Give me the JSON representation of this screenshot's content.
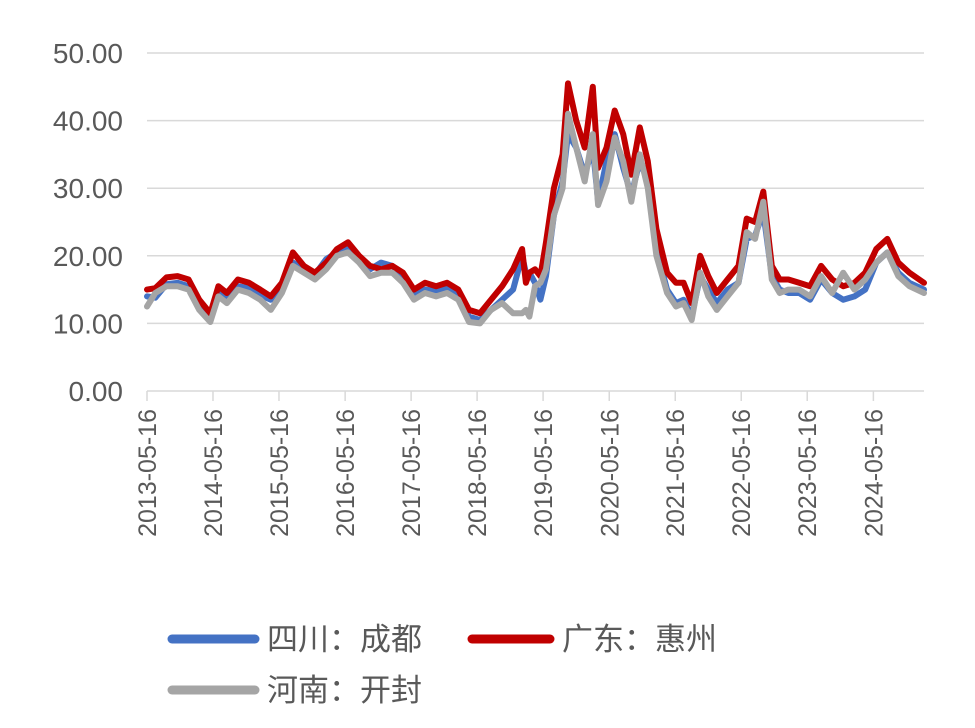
{
  "chart_data": {
    "type": "line",
    "title": "",
    "xlabel": "",
    "ylabel": "",
    "ylim": [
      0,
      50
    ],
    "yticks": [
      "0.00",
      "10.00",
      "20.00",
      "30.00",
      "40.00",
      "50.00"
    ],
    "xlim": [
      "2013-05-16",
      "2025-02-20"
    ],
    "xticks": [
      "2013-05-16",
      "2014-05-16",
      "2015-05-16",
      "2016-05-16",
      "2017-05-16",
      "2018-05-16",
      "2019-05-16",
      "2020-05-16",
      "2021-05-16",
      "2022-05-16",
      "2023-05-16",
      "2024-05-16"
    ],
    "grid": "horizontal",
    "legend_position": "bottom",
    "series": [
      {
        "name": "四川：成都",
        "color": "#4472C4",
        "points": [
          [
            "2013-05-16",
            14.0
          ],
          [
            "2013-07-01",
            13.8
          ],
          [
            "2013-09-01",
            15.8
          ],
          [
            "2013-11-01",
            16.0
          ],
          [
            "2014-01-01",
            15.5
          ],
          [
            "2014-03-01",
            12.5
          ],
          [
            "2014-05-01",
            10.8
          ],
          [
            "2014-06-15",
            14.5
          ],
          [
            "2014-08-01",
            13.5
          ],
          [
            "2014-10-01",
            15.5
          ],
          [
            "2014-12-01",
            15.2
          ],
          [
            "2015-02-01",
            14.2
          ],
          [
            "2015-04-01",
            13.5
          ],
          [
            "2015-06-01",
            15.2
          ],
          [
            "2015-08-01",
            19.0
          ],
          [
            "2015-10-01",
            18.0
          ],
          [
            "2015-12-01",
            17.2
          ],
          [
            "2016-02-01",
            19.5
          ],
          [
            "2016-04-01",
            20.5
          ],
          [
            "2016-06-01",
            21.5
          ],
          [
            "2016-08-01",
            19.5
          ],
          [
            "2016-10-01",
            18.0
          ],
          [
            "2016-12-01",
            19.0
          ],
          [
            "2017-02-01",
            18.5
          ],
          [
            "2017-04-01",
            17.0
          ],
          [
            "2017-06-01",
            14.2
          ],
          [
            "2017-08-01",
            15.0
          ],
          [
            "2017-10-01",
            14.8
          ],
          [
            "2017-12-01",
            15.2
          ],
          [
            "2018-02-01",
            14.0
          ],
          [
            "2018-04-01",
            11.0
          ],
          [
            "2018-06-01",
            10.5
          ],
          [
            "2018-08-01",
            12.0
          ],
          [
            "2018-10-01",
            13.5
          ],
          [
            "2018-12-01",
            15.0
          ],
          [
            "2019-01-20",
            20.0
          ],
          [
            "2019-02-10",
            17.5
          ],
          [
            "2019-03-01",
            17.5
          ],
          [
            "2019-04-01",
            16.0
          ],
          [
            "2019-05-01",
            13.5
          ],
          [
            "2019-06-01",
            17.0
          ],
          [
            "2019-07-15",
            26.0
          ],
          [
            "2019-09-01",
            31.0
          ],
          [
            "2019-10-01",
            38.0
          ],
          [
            "2019-11-15",
            36.0
          ],
          [
            "2020-01-01",
            32.0
          ],
          [
            "2020-02-15",
            36.0
          ],
          [
            "2020-03-15",
            28.0
          ],
          [
            "2020-05-01",
            34.0
          ],
          [
            "2020-06-15",
            38.0
          ],
          [
            "2020-08-01",
            33.0
          ],
          [
            "2020-09-15",
            29.0
          ],
          [
            "2020-11-01",
            34.0
          ],
          [
            "2020-12-15",
            31.0
          ],
          [
            "2021-02-01",
            21.0
          ],
          [
            "2021-04-01",
            15.0
          ],
          [
            "2021-05-20",
            13.0
          ],
          [
            "2021-07-01",
            13.5
          ],
          [
            "2021-08-15",
            11.0
          ],
          [
            "2021-10-01",
            17.0
          ],
          [
            "2021-11-15",
            15.0
          ],
          [
            "2022-01-01",
            13.0
          ],
          [
            "2022-03-01",
            15.0
          ],
          [
            "2022-05-01",
            16.0
          ],
          [
            "2022-06-15",
            22.5
          ],
          [
            "2022-08-01",
            23.0
          ],
          [
            "2022-09-15",
            26.5
          ],
          [
            "2022-11-01",
            17.0
          ],
          [
            "2022-12-15",
            15.0
          ],
          [
            "2023-02-01",
            14.5
          ],
          [
            "2023-04-01",
            14.5
          ],
          [
            "2023-06-01",
            13.5
          ],
          [
            "2023-08-01",
            16.5
          ],
          [
            "2023-10-01",
            14.5
          ],
          [
            "2023-12-01",
            13.5
          ],
          [
            "2024-02-01",
            14.0
          ],
          [
            "2024-04-01",
            15.0
          ],
          [
            "2024-06-01",
            19.0
          ],
          [
            "2024-08-01",
            20.5
          ],
          [
            "2024-10-01",
            17.5
          ],
          [
            "2024-12-01",
            16.0
          ],
          [
            "2025-02-20",
            15.0
          ]
        ]
      },
      {
        "name": "广东：惠州",
        "color": "#C00000",
        "points": [
          [
            "2013-05-16",
            15.0
          ],
          [
            "2013-07-01",
            15.2
          ],
          [
            "2013-09-01",
            16.8
          ],
          [
            "2013-11-01",
            17.0
          ],
          [
            "2014-01-01",
            16.5
          ],
          [
            "2014-03-01",
            13.5
          ],
          [
            "2014-05-01",
            11.5
          ],
          [
            "2014-06-15",
            15.5
          ],
          [
            "2014-08-01",
            14.5
          ],
          [
            "2014-10-01",
            16.5
          ],
          [
            "2014-12-01",
            16.0
          ],
          [
            "2015-02-01",
            15.0
          ],
          [
            "2015-04-01",
            14.0
          ],
          [
            "2015-06-01",
            16.0
          ],
          [
            "2015-08-01",
            20.5
          ],
          [
            "2015-10-01",
            18.5
          ],
          [
            "2015-12-01",
            17.5
          ],
          [
            "2016-02-01",
            19.0
          ],
          [
            "2016-04-01",
            21.0
          ],
          [
            "2016-06-01",
            22.0
          ],
          [
            "2016-08-01",
            20.0
          ],
          [
            "2016-10-01",
            18.5
          ],
          [
            "2016-12-01",
            18.0
          ],
          [
            "2017-02-01",
            18.5
          ],
          [
            "2017-04-01",
            17.5
          ],
          [
            "2017-06-01",
            15.0
          ],
          [
            "2017-08-01",
            16.0
          ],
          [
            "2017-10-01",
            15.5
          ],
          [
            "2017-12-01",
            16.0
          ],
          [
            "2018-02-01",
            15.0
          ],
          [
            "2018-04-01",
            12.0
          ],
          [
            "2018-06-01",
            11.5
          ],
          [
            "2018-08-01",
            13.5
          ],
          [
            "2018-10-01",
            15.5
          ],
          [
            "2018-12-01",
            18.0
          ],
          [
            "2019-01-20",
            21.0
          ],
          [
            "2019-02-10",
            16.0
          ],
          [
            "2019-03-01",
            17.5
          ],
          [
            "2019-04-01",
            18.0
          ],
          [
            "2019-05-01",
            17.0
          ],
          [
            "2019-06-01",
            22.0
          ],
          [
            "2019-07-15",
            30.0
          ],
          [
            "2019-09-01",
            35.0
          ],
          [
            "2019-10-01",
            45.5
          ],
          [
            "2019-11-15",
            40.0
          ],
          [
            "2020-01-01",
            36.0
          ],
          [
            "2020-02-15",
            45.0
          ],
          [
            "2020-03-15",
            33.0
          ],
          [
            "2020-05-01",
            36.0
          ],
          [
            "2020-06-15",
            41.5
          ],
          [
            "2020-08-01",
            38.0
          ],
          [
            "2020-09-15",
            32.0
          ],
          [
            "2020-11-01",
            39.0
          ],
          [
            "2020-12-15",
            34.0
          ],
          [
            "2021-02-01",
            24.0
          ],
          [
            "2021-04-01",
            17.5
          ],
          [
            "2021-05-20",
            16.0
          ],
          [
            "2021-07-01",
            16.0
          ],
          [
            "2021-08-15",
            13.0
          ],
          [
            "2021-10-01",
            20.0
          ],
          [
            "2021-11-15",
            17.0
          ],
          [
            "2022-01-01",
            14.5
          ],
          [
            "2022-03-01",
            16.5
          ],
          [
            "2022-05-01",
            18.5
          ],
          [
            "2022-06-15",
            25.5
          ],
          [
            "2022-08-01",
            25.0
          ],
          [
            "2022-09-15",
            29.5
          ],
          [
            "2022-11-01",
            18.5
          ],
          [
            "2022-12-15",
            16.5
          ],
          [
            "2023-02-01",
            16.5
          ],
          [
            "2023-04-01",
            16.0
          ],
          [
            "2023-06-01",
            15.5
          ],
          [
            "2023-08-01",
            18.5
          ],
          [
            "2023-10-01",
            16.5
          ],
          [
            "2023-12-01",
            15.5
          ],
          [
            "2024-02-01",
            16.0
          ],
          [
            "2024-04-01",
            17.5
          ],
          [
            "2024-06-01",
            21.0
          ],
          [
            "2024-08-01",
            22.5
          ],
          [
            "2024-10-01",
            19.0
          ],
          [
            "2024-12-01",
            17.5
          ],
          [
            "2025-02-20",
            16.0
          ]
        ]
      },
      {
        "name": "河南：开封",
        "color": "#A5A5A5",
        "points": [
          [
            "2013-05-16",
            12.5
          ],
          [
            "2013-07-01",
            14.5
          ],
          [
            "2013-09-01",
            15.5
          ],
          [
            "2013-11-01",
            15.5
          ],
          [
            "2014-01-01",
            15.0
          ],
          [
            "2014-03-01",
            12.0
          ],
          [
            "2014-05-01",
            10.2
          ],
          [
            "2014-06-15",
            14.0
          ],
          [
            "2014-08-01",
            13.0
          ],
          [
            "2014-10-01",
            15.0
          ],
          [
            "2014-12-01",
            14.5
          ],
          [
            "2015-02-01",
            13.5
          ],
          [
            "2015-04-01",
            12.0
          ],
          [
            "2015-06-01",
            14.5
          ],
          [
            "2015-08-01",
            18.5
          ],
          [
            "2015-10-01",
            17.5
          ],
          [
            "2015-12-01",
            16.5
          ],
          [
            "2016-02-01",
            18.0
          ],
          [
            "2016-04-01",
            20.0
          ],
          [
            "2016-06-01",
            20.5
          ],
          [
            "2016-08-01",
            19.0
          ],
          [
            "2016-10-01",
            17.0
          ],
          [
            "2016-12-01",
            17.5
          ],
          [
            "2017-02-01",
            17.5
          ],
          [
            "2017-04-01",
            16.0
          ],
          [
            "2017-06-01",
            13.5
          ],
          [
            "2017-08-01",
            14.5
          ],
          [
            "2017-10-01",
            14.0
          ],
          [
            "2017-12-01",
            14.5
          ],
          [
            "2018-02-01",
            13.5
          ],
          [
            "2018-04-01",
            10.2
          ],
          [
            "2018-06-01",
            10.0
          ],
          [
            "2018-08-01",
            12.0
          ],
          [
            "2018-10-01",
            13.0
          ],
          [
            "2018-12-01",
            11.5
          ],
          [
            "2019-01-20",
            11.5
          ],
          [
            "2019-02-10",
            12.0
          ],
          [
            "2019-03-01",
            11.0
          ],
          [
            "2019-04-01",
            15.5
          ],
          [
            "2019-05-01",
            16.0
          ],
          [
            "2019-06-01",
            18.0
          ],
          [
            "2019-07-15",
            26.0
          ],
          [
            "2019-09-01",
            30.0
          ],
          [
            "2019-10-01",
            41.0
          ],
          [
            "2019-11-15",
            36.0
          ],
          [
            "2020-01-01",
            31.0
          ],
          [
            "2020-02-15",
            38.0
          ],
          [
            "2020-03-15",
            27.5
          ],
          [
            "2020-05-01",
            31.0
          ],
          [
            "2020-06-15",
            37.5
          ],
          [
            "2020-08-01",
            34.0
          ],
          [
            "2020-09-15",
            28.0
          ],
          [
            "2020-11-01",
            35.0
          ],
          [
            "2020-12-15",
            30.0
          ],
          [
            "2021-02-01",
            20.0
          ],
          [
            "2021-04-01",
            14.5
          ],
          [
            "2021-05-20",
            12.5
          ],
          [
            "2021-07-01",
            13.0
          ],
          [
            "2021-08-15",
            10.5
          ],
          [
            "2021-10-01",
            17.5
          ],
          [
            "2021-11-15",
            14.0
          ],
          [
            "2022-01-01",
            12.0
          ],
          [
            "2022-03-01",
            14.0
          ],
          [
            "2022-05-01",
            16.0
          ],
          [
            "2022-06-15",
            23.5
          ],
          [
            "2022-08-01",
            22.5
          ],
          [
            "2022-09-15",
            28.0
          ],
          [
            "2022-11-01",
            16.5
          ],
          [
            "2022-12-15",
            14.5
          ],
          [
            "2023-02-01",
            15.0
          ],
          [
            "2023-04-01",
            15.0
          ],
          [
            "2023-06-01",
            14.0
          ],
          [
            "2023-08-01",
            17.0
          ],
          [
            "2023-10-01",
            14.5
          ],
          [
            "2023-12-01",
            17.5
          ],
          [
            "2024-02-01",
            15.0
          ],
          [
            "2024-04-01",
            16.5
          ],
          [
            "2024-06-01",
            19.0
          ],
          [
            "2024-08-01",
            20.5
          ],
          [
            "2024-10-01",
            17.0
          ],
          [
            "2024-12-01",
            15.5
          ],
          [
            "2025-02-20",
            14.5
          ]
        ]
      }
    ]
  }
}
